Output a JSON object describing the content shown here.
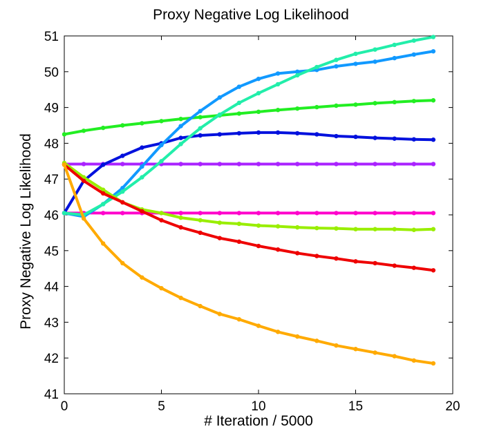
{
  "chart_data": {
    "type": "line",
    "title": "Proxy Negative Log Likelihood",
    "xlabel": "# Iteration / 5000",
    "ylabel": "Proxy Negative Log Likelihood",
    "xlim": [
      0,
      20
    ],
    "ylim": [
      41,
      51
    ],
    "xticks": [
      "0",
      "5",
      "10",
      "15",
      "20"
    ],
    "yticks": [
      "41",
      "42",
      "43",
      "44",
      "45",
      "46",
      "47",
      "48",
      "49",
      "50",
      "51"
    ],
    "grid": false,
    "x": [
      0,
      1,
      2,
      3,
      4,
      5,
      6,
      7,
      8,
      9,
      10,
      11,
      12,
      13,
      14,
      15,
      16,
      17,
      18,
      19
    ],
    "series": [
      {
        "name": "magenta",
        "color": "#ff00cc",
        "values": [
          46.05,
          46.05,
          46.05,
          46.05,
          46.05,
          46.05,
          46.05,
          46.05,
          46.05,
          46.05,
          46.05,
          46.05,
          46.05,
          46.05,
          46.05,
          46.05,
          46.05,
          46.05,
          46.05,
          46.05
        ]
      },
      {
        "name": "purple",
        "color": "#aa22ff",
        "values": [
          47.42,
          47.42,
          47.42,
          47.42,
          47.42,
          47.42,
          47.42,
          47.42,
          47.42,
          47.42,
          47.42,
          47.42,
          47.42,
          47.42,
          47.42,
          47.42,
          47.42,
          47.42,
          47.42,
          47.42
        ]
      },
      {
        "name": "green",
        "color": "#22ee22",
        "values": [
          48.25,
          48.35,
          48.43,
          48.5,
          48.56,
          48.62,
          48.68,
          48.73,
          48.78,
          48.83,
          48.88,
          48.93,
          48.97,
          49.01,
          49.05,
          49.08,
          49.12,
          49.15,
          49.18,
          49.2
        ]
      },
      {
        "name": "blue",
        "color": "#0011dd",
        "values": [
          46.05,
          46.95,
          47.4,
          47.65,
          47.88,
          48.0,
          48.15,
          48.22,
          48.25,
          48.28,
          48.3,
          48.3,
          48.28,
          48.25,
          48.2,
          48.18,
          48.15,
          48.13,
          48.11,
          48.1
        ]
      },
      {
        "name": "sky-blue",
        "color": "#1199ff",
        "values": [
          46.05,
          45.95,
          46.3,
          46.75,
          47.35,
          47.95,
          48.48,
          48.9,
          49.28,
          49.58,
          49.8,
          49.95,
          50.0,
          50.05,
          50.15,
          50.22,
          50.28,
          50.38,
          50.48,
          50.57
        ]
      },
      {
        "name": "aquamarine",
        "color": "#22eeaa",
        "values": [
          46.05,
          46.0,
          46.3,
          46.65,
          47.05,
          47.5,
          47.98,
          48.42,
          48.8,
          49.13,
          49.4,
          49.65,
          49.9,
          50.13,
          50.33,
          50.5,
          50.62,
          50.75,
          50.87,
          50.97
        ]
      },
      {
        "name": "yellow-green",
        "color": "#99ee00",
        "values": [
          47.45,
          47.05,
          46.7,
          46.35,
          46.15,
          46.05,
          45.92,
          45.85,
          45.78,
          45.75,
          45.7,
          45.68,
          45.65,
          45.63,
          45.62,
          45.6,
          45.6,
          45.6,
          45.58,
          45.6
        ]
      },
      {
        "name": "red",
        "color": "#ee0000",
        "values": [
          47.4,
          46.95,
          46.6,
          46.35,
          46.1,
          45.85,
          45.65,
          45.5,
          45.35,
          45.25,
          45.13,
          45.03,
          44.93,
          44.85,
          44.78,
          44.7,
          44.65,
          44.58,
          44.52,
          44.45
        ]
      },
      {
        "name": "orange",
        "color": "#ffaa00",
        "values": [
          47.4,
          45.9,
          45.2,
          44.65,
          44.25,
          43.95,
          43.68,
          43.45,
          43.23,
          43.08,
          42.9,
          42.73,
          42.6,
          42.48,
          42.35,
          42.25,
          42.15,
          42.05,
          41.93,
          41.85
        ]
      }
    ]
  }
}
